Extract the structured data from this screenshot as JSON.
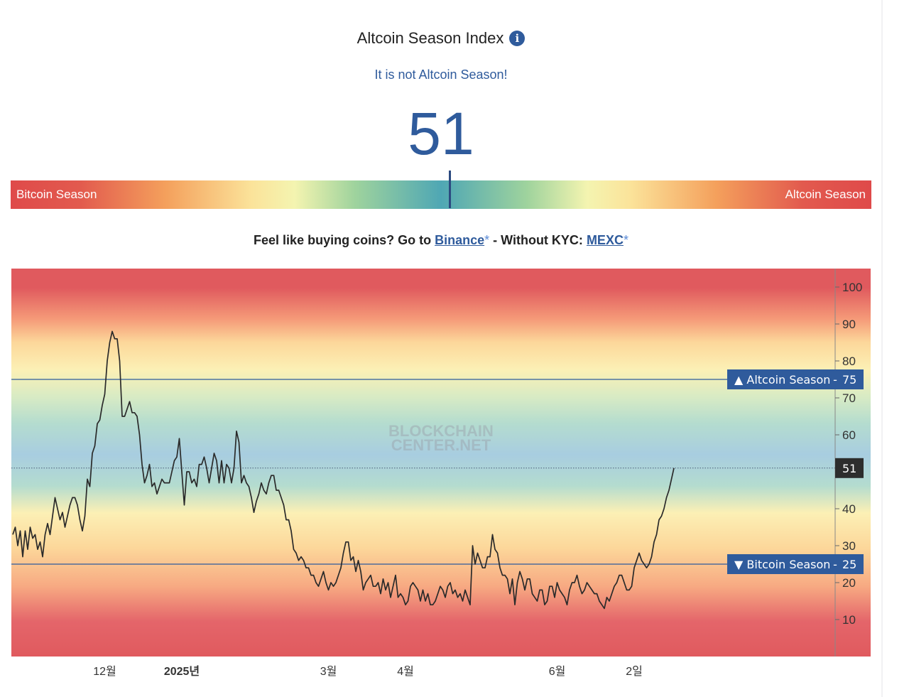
{
  "header": {
    "title": "Altcoin Season Index",
    "info_icon": "info-icon",
    "status": "It is not Altcoin Season!",
    "value": "51"
  },
  "gauge": {
    "left_label": "Bitcoin Season",
    "right_label": "Altcoin Season",
    "value": 51
  },
  "promo": {
    "prefix": "Feel like buying coins? Go to ",
    "binance": "Binance",
    "asterisk": "*",
    "middle": " - Without KYC: ",
    "mexc": "MEXC"
  },
  "colors": {
    "accent": "#2f5b9c",
    "bitcoin_red": "#df4a4a",
    "neutral_blue": "#4fa7b4",
    "line": "#2a2a2a",
    "tag_bg": "#2f5b9c",
    "current_bg": "#2d2d2d"
  },
  "chart_data": {
    "type": "line",
    "watermark": [
      "BLOCKCHAIN",
      "CENTER.NET"
    ],
    "ylim": [
      0,
      105
    ],
    "yticks": [
      10,
      20,
      30,
      40,
      50,
      60,
      70,
      80,
      90,
      100
    ],
    "ytick_labels": [
      "10",
      "20",
      "30",
      "40",
      "",
      "60",
      "70",
      "80",
      "90",
      "100"
    ],
    "x_ticks": [
      {
        "label": "12월",
        "day": 37,
        "bold": false
      },
      {
        "label": "2025년",
        "day": 68,
        "bold": true
      },
      {
        "label": "3월",
        "day": 127,
        "bold": false
      },
      {
        "label": "4월",
        "day": 158,
        "bold": false
      },
      {
        "label": "6월",
        "day": 219,
        "bold": false
      },
      {
        "label": "2일",
        "day": 250,
        "bold": false
      }
    ],
    "thresholds": [
      {
        "value": 75,
        "label": "▲ Altcoin Season",
        "value_label": "75"
      },
      {
        "value": 25,
        "label": "▼ Bitcoin Season",
        "value_label": "25"
      }
    ],
    "current": {
      "value": 51,
      "label": "51"
    },
    "series": [
      {
        "values": [
          33,
          35,
          30,
          34,
          27,
          34,
          29,
          35,
          32,
          33,
          29,
          31,
          27,
          33,
          36,
          33,
          38,
          43,
          40,
          37,
          39,
          35,
          38,
          41,
          43,
          43,
          41,
          37,
          34,
          38,
          48,
          46,
          55,
          57,
          63,
          64,
          68,
          71,
          80,
          85,
          88,
          86,
          86,
          80,
          65,
          65,
          67,
          69,
          66,
          66,
          65,
          60,
          52,
          47,
          49,
          52,
          46,
          47,
          44,
          46,
          48,
          47,
          47,
          47,
          50,
          53,
          54,
          59,
          50,
          41,
          50,
          50,
          47,
          48,
          46,
          52,
          52,
          54,
          51,
          47,
          51,
          55,
          53,
          47,
          53,
          47,
          52,
          51,
          47,
          51,
          61,
          58,
          47,
          49,
          47,
          46,
          43,
          39,
          42,
          44,
          47,
          45,
          44,
          47,
          49,
          49,
          45,
          45,
          43,
          41,
          37,
          37,
          34,
          29,
          28,
          26,
          27,
          26,
          24,
          24,
          22,
          22,
          20,
          19,
          21,
          23,
          20,
          18,
          20,
          19,
          20,
          22,
          24,
          28,
          31,
          31,
          26,
          27,
          23,
          26,
          23,
          18,
          20,
          21,
          22,
          19,
          19,
          20,
          17,
          21,
          18,
          20,
          16,
          19,
          22,
          16,
          17,
          16,
          14,
          15,
          19,
          20,
          19,
          18,
          15,
          18,
          15,
          17,
          14,
          14,
          15,
          17,
          19,
          18,
          16,
          19,
          20,
          17,
          18,
          16,
          17,
          15,
          18,
          16,
          14,
          30,
          25,
          28,
          26,
          24,
          24,
          27,
          27,
          33,
          29,
          28,
          24,
          22,
          22,
          21,
          17,
          21,
          14,
          20,
          23,
          21,
          18,
          21,
          21,
          17,
          16,
          15,
          18,
          18,
          14,
          15,
          19,
          19,
          16,
          20,
          18,
          17,
          16,
          14,
          18,
          20,
          20,
          22,
          19,
          17,
          18,
          20,
          19,
          18,
          17,
          17,
          15,
          14,
          13,
          16,
          15,
          17,
          19,
          20,
          22,
          22,
          20,
          18,
          18,
          19,
          24,
          26,
          28,
          26,
          25,
          24,
          25,
          27,
          31,
          33,
          37,
          38,
          40,
          43,
          45,
          48,
          51
        ]
      }
    ]
  }
}
